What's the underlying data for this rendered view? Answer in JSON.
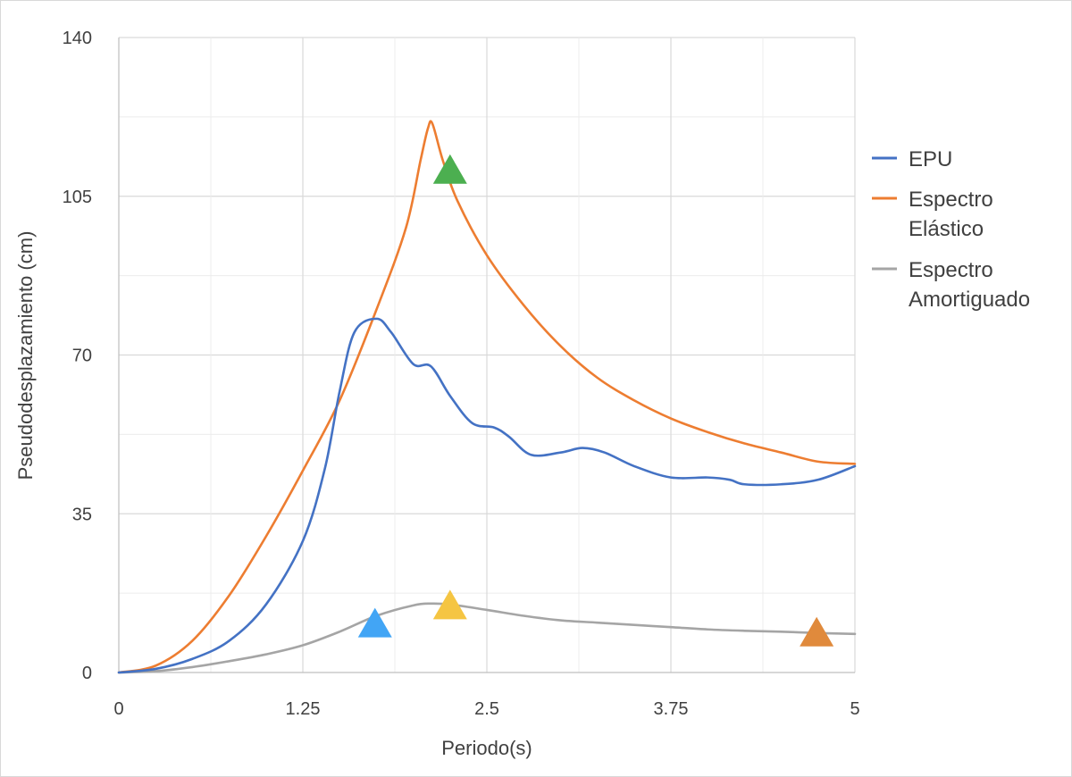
{
  "chart_data": {
    "type": "line",
    "title": "",
    "xlabel": "Periodo(s)",
    "ylabel": "Pseudodesplazamiento (cm)",
    "xlim": [
      0,
      5
    ],
    "ylim": [
      0,
      140
    ],
    "x_ticks": [
      "0",
      "1.25",
      "2.5",
      "3.75",
      "5"
    ],
    "y_ticks": [
      "0",
      "35",
      "70",
      "105",
      "140"
    ],
    "grid": true,
    "legend_position": "right",
    "series": [
      {
        "name": "EPU",
        "color": "#4472c4",
        "points": [
          [
            0,
            0
          ],
          [
            0.25,
            0.8
          ],
          [
            0.5,
            3
          ],
          [
            0.75,
            7
          ],
          [
            1.0,
            15
          ],
          [
            1.25,
            29
          ],
          [
            1.4,
            45
          ],
          [
            1.5,
            62
          ],
          [
            1.6,
            75
          ],
          [
            1.75,
            78
          ],
          [
            1.85,
            75
          ],
          [
            2.0,
            68
          ],
          [
            2.12,
            67.5
          ],
          [
            2.25,
            61
          ],
          [
            2.4,
            55
          ],
          [
            2.55,
            54
          ],
          [
            2.65,
            52
          ],
          [
            2.8,
            48
          ],
          [
            3.0,
            48.5
          ],
          [
            3.15,
            49.5
          ],
          [
            3.3,
            48.5
          ],
          [
            3.5,
            45.5
          ],
          [
            3.75,
            43
          ],
          [
            4.0,
            43
          ],
          [
            4.15,
            42.5
          ],
          [
            4.25,
            41.5
          ],
          [
            4.5,
            41.5
          ],
          [
            4.75,
            42.5
          ],
          [
            5.0,
            45.5
          ]
        ]
      },
      {
        "name": "Espectro Elástico",
        "color": "#ed7d31",
        "points": [
          [
            0,
            0
          ],
          [
            0.25,
            1.5
          ],
          [
            0.5,
            7
          ],
          [
            0.75,
            17
          ],
          [
            1.0,
            30
          ],
          [
            1.25,
            44.5
          ],
          [
            1.5,
            60
          ],
          [
            1.75,
            80
          ],
          [
            1.95,
            98
          ],
          [
            2.05,
            113
          ],
          [
            2.1,
            120
          ],
          [
            2.13,
            121
          ],
          [
            2.2,
            113
          ],
          [
            2.3,
            104
          ],
          [
            2.5,
            92
          ],
          [
            2.75,
            81
          ],
          [
            3.0,
            72
          ],
          [
            3.25,
            65
          ],
          [
            3.5,
            60
          ],
          [
            3.75,
            56
          ],
          [
            4.0,
            53
          ],
          [
            4.25,
            50.5
          ],
          [
            4.5,
            48.5
          ],
          [
            4.75,
            46.5
          ],
          [
            5.0,
            46
          ]
        ]
      },
      {
        "name": "Espectro Amortiguado",
        "color": "#a5a5a5",
        "points": [
          [
            0,
            0
          ],
          [
            0.25,
            0.3
          ],
          [
            0.5,
            1.2
          ],
          [
            0.75,
            2.5
          ],
          [
            1.0,
            4
          ],
          [
            1.25,
            6
          ],
          [
            1.5,
            9
          ],
          [
            1.75,
            12.5
          ],
          [
            2.0,
            14.8
          ],
          [
            2.12,
            15.2
          ],
          [
            2.25,
            15
          ],
          [
            2.5,
            13.8
          ],
          [
            2.75,
            12.5
          ],
          [
            3.0,
            11.5
          ],
          [
            3.25,
            11
          ],
          [
            3.5,
            10.5
          ],
          [
            3.75,
            10
          ],
          [
            4.0,
            9.5
          ],
          [
            4.25,
            9.2
          ],
          [
            4.5,
            9
          ],
          [
            4.75,
            8.7
          ],
          [
            5.0,
            8.5
          ]
        ]
      }
    ],
    "markers": [
      {
        "x": 2.25,
        "y": 111,
        "color": "#4caf50"
      },
      {
        "x": 1.74,
        "y": 11,
        "color": "#42a5f5"
      },
      {
        "x": 2.25,
        "y": 15,
        "color": "#f5c542"
      },
      {
        "x": 4.74,
        "y": 9,
        "color": "#e08a3c"
      }
    ]
  }
}
